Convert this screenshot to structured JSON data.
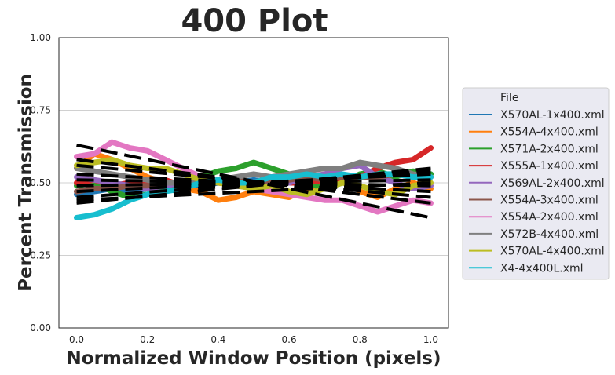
{
  "chart_data": {
    "type": "line",
    "title": "400 Plot",
    "xlabel": "Normalized Window Position (pixels)",
    "ylabel": "Percent Transmission",
    "xlim": [
      -0.05,
      1.05
    ],
    "ylim": [
      0.0,
      1.0
    ],
    "xticks": [
      "0.0",
      "0.2",
      "0.4",
      "0.6",
      "0.8",
      "1.0"
    ],
    "yticks": [
      "0.00",
      "0.25",
      "0.50",
      "0.75",
      "1.00"
    ],
    "grid": "horizontal",
    "legend": {
      "title": "File",
      "placement": "right, outside plot"
    },
    "x": [
      0.0,
      0.05,
      0.1,
      0.15,
      0.2,
      0.25,
      0.3,
      0.35,
      0.4,
      0.45,
      0.5,
      0.55,
      0.6,
      0.65,
      0.7,
      0.75,
      0.8,
      0.85,
      0.9,
      0.95,
      1.0
    ],
    "series": [
      {
        "name": "X570AL-1x400.xml",
        "color": "#1f77b4",
        "values": [
          0.46,
          0.47,
          0.48,
          0.47,
          0.48,
          0.49,
          0.5,
          0.49,
          0.5,
          0.5,
          0.51,
          0.5,
          0.51,
          0.51,
          0.52,
          0.51,
          0.52,
          0.52,
          0.53,
          0.52,
          0.53
        ]
      },
      {
        "name": "X554A-4x400.xml",
        "color": "#ff7f0e",
        "values": [
          0.55,
          0.6,
          0.58,
          0.55,
          0.52,
          0.5,
          0.48,
          0.47,
          0.44,
          0.45,
          0.47,
          0.46,
          0.45,
          0.48,
          0.5,
          0.52,
          0.47,
          0.45,
          0.48,
          0.5,
          0.48
        ]
      },
      {
        "name": "X571A-2x400.xml",
        "color": "#2ca02c",
        "values": [
          0.49,
          0.5,
          0.47,
          0.45,
          0.46,
          0.48,
          0.5,
          0.52,
          0.54,
          0.55,
          0.57,
          0.55,
          0.53,
          0.5,
          0.48,
          0.5,
          0.53,
          0.54,
          0.52,
          0.54,
          0.53
        ]
      },
      {
        "name": "X555A-1x400.xml",
        "color": "#d62728",
        "values": [
          0.5,
          0.51,
          0.49,
          0.5,
          0.5,
          0.51,
          0.49,
          0.5,
          0.51,
          0.5,
          0.49,
          0.51,
          0.5,
          0.5,
          0.51,
          0.5,
          0.52,
          0.55,
          0.57,
          0.58,
          0.62
        ]
      },
      {
        "name": "X569AL-2x400.xml",
        "color": "#9467bd",
        "values": [
          0.52,
          0.51,
          0.5,
          0.49,
          0.48,
          0.49,
          0.5,
          0.51,
          0.5,
          0.5,
          0.49,
          0.51,
          0.5,
          0.52,
          0.53,
          0.55,
          0.56,
          0.52,
          0.5,
          0.48,
          0.49
        ]
      },
      {
        "name": "X554A-3x400.xml",
        "color": "#8c564b",
        "values": [
          0.47,
          0.48,
          0.48,
          0.49,
          0.49,
          0.5,
          0.5,
          0.5,
          0.51,
          0.51,
          0.5,
          0.51,
          0.51,
          0.52,
          0.51,
          0.52,
          0.52,
          0.52,
          0.53,
          0.52,
          0.52
        ]
      },
      {
        "name": "X554A-2x400.xml",
        "color": "#e377c2",
        "values": [
          0.59,
          0.6,
          0.64,
          0.62,
          0.61,
          0.58,
          0.55,
          0.52,
          0.5,
          0.49,
          0.48,
          0.47,
          0.46,
          0.45,
          0.44,
          0.44,
          0.42,
          0.4,
          0.42,
          0.44,
          0.43
        ]
      },
      {
        "name": "X572B-4x400.xml",
        "color": "#7f7f7f",
        "values": [
          0.55,
          0.54,
          0.53,
          0.52,
          0.51,
          0.5,
          0.5,
          0.5,
          0.51,
          0.52,
          0.53,
          0.52,
          0.53,
          0.54,
          0.55,
          0.55,
          0.57,
          0.56,
          0.55,
          0.53,
          0.52
        ]
      },
      {
        "name": "X570AL-4x400.xml",
        "color": "#bcbd22",
        "values": [
          0.56,
          0.57,
          0.58,
          0.56,
          0.55,
          0.55,
          0.53,
          0.51,
          0.5,
          0.49,
          0.48,
          0.49,
          0.47,
          0.46,
          0.48,
          0.5,
          0.49,
          0.47,
          0.46,
          0.49,
          0.5
        ]
      },
      {
        "name": "X4-4x400L.xml",
        "color": "#17becf",
        "values": [
          0.38,
          0.39,
          0.41,
          0.44,
          0.46,
          0.47,
          0.48,
          0.5,
          0.51,
          0.5,
          0.5,
          0.52,
          0.52,
          0.53,
          0.52,
          0.53,
          0.52,
          0.53,
          0.53,
          0.52,
          0.52
        ]
      }
    ],
    "fit_lines": [
      {
        "start": 0.63,
        "end": 0.38
      },
      {
        "start": 0.58,
        "end": 0.43
      },
      {
        "start": 0.56,
        "end": 0.45
      },
      {
        "start": 0.53,
        "end": 0.47
      },
      {
        "start": 0.51,
        "end": 0.49
      },
      {
        "start": 0.49,
        "end": 0.51
      },
      {
        "start": 0.47,
        "end": 0.53
      },
      {
        "start": 0.45,
        "end": 0.54
      },
      {
        "start": 0.43,
        "end": 0.55
      },
      {
        "start": 0.44,
        "end": 0.5
      }
    ]
  }
}
